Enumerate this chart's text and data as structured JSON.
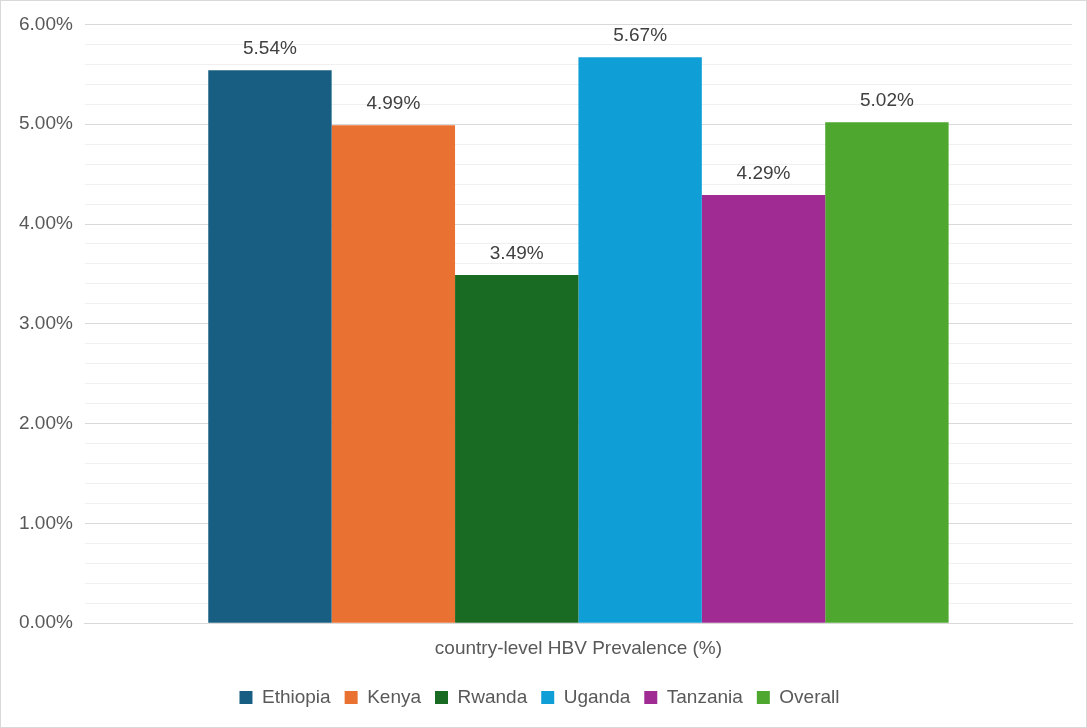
{
  "chart_data": {
    "type": "bar",
    "categories": [
      "country-level HBV Prevalence (%)"
    ],
    "series": [
      {
        "name": "Ethiopia",
        "color": "#175e82",
        "values": [
          5.54
        ],
        "value_labels": [
          "5.54%"
        ]
      },
      {
        "name": "Kenya",
        "color": "#e97132",
        "values": [
          4.99
        ],
        "value_labels": [
          "4.99%"
        ]
      },
      {
        "name": "Rwanda",
        "color": "#196b24",
        "values": [
          3.49
        ],
        "value_labels": [
          "3.49%"
        ]
      },
      {
        "name": "Uganda",
        "color": "#0f9ed5",
        "values": [
          5.67
        ],
        "value_labels": [
          "5.67%"
        ]
      },
      {
        "name": "Tanzania",
        "color": "#a02b93",
        "values": [
          4.29
        ],
        "value_labels": [
          "4.29%"
        ]
      },
      {
        "name": "Overall",
        "color": "#4ea72e",
        "values": [
          5.02
        ],
        "value_labels": [
          "5.02%"
        ]
      }
    ],
    "ylim": [
      0,
      6
    ],
    "yticks": [
      {
        "value": 0,
        "label": "0.00%"
      },
      {
        "value": 0.2,
        "label": null
      },
      {
        "value": 0.4,
        "label": null
      },
      {
        "value": 0.6,
        "label": null
      },
      {
        "value": 0.8,
        "label": null
      },
      {
        "value": 1,
        "label": "1.00%"
      },
      {
        "value": 1.2,
        "label": null
      },
      {
        "value": 1.4,
        "label": null
      },
      {
        "value": 1.6,
        "label": null
      },
      {
        "value": 1.8,
        "label": null
      },
      {
        "value": 2,
        "label": "2.00%"
      },
      {
        "value": 2.2,
        "label": null
      },
      {
        "value": 2.4,
        "label": null
      },
      {
        "value": 2.6,
        "label": null
      },
      {
        "value": 2.8,
        "label": null
      },
      {
        "value": 3,
        "label": "3.00%"
      },
      {
        "value": 3.2,
        "label": null
      },
      {
        "value": 3.4,
        "label": null
      },
      {
        "value": 3.6,
        "label": null
      },
      {
        "value": 3.8,
        "label": null
      },
      {
        "value": 4,
        "label": "4.00%"
      },
      {
        "value": 4.2,
        "label": null
      },
      {
        "value": 4.4,
        "label": null
      },
      {
        "value": 4.6,
        "label": null
      },
      {
        "value": 4.8,
        "label": null
      },
      {
        "value": 5,
        "label": "5.00%"
      },
      {
        "value": 5.2,
        "label": null
      },
      {
        "value": 5.4,
        "label": null
      },
      {
        "value": 5.6,
        "label": null
      },
      {
        "value": 5.8,
        "label": null
      },
      {
        "value": 6,
        "label": "6.00%"
      }
    ],
    "grid": "y",
    "legend": "bottom"
  }
}
